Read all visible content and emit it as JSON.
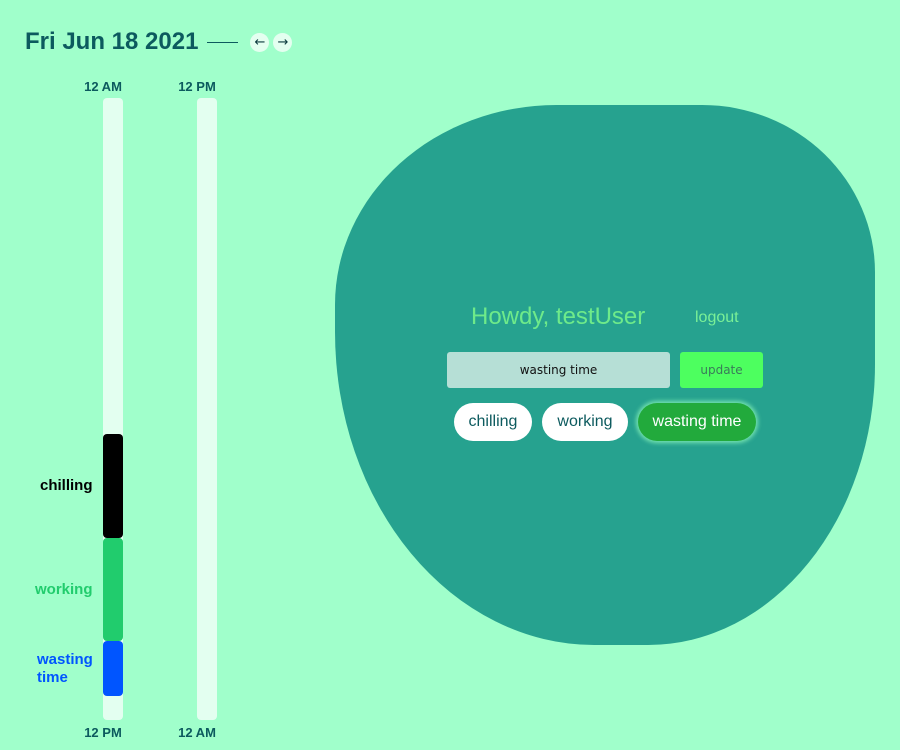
{
  "header": {
    "date": "Fri Jun 18 2021",
    "prev_label": "←",
    "next_label": "→"
  },
  "timeline": {
    "am_column": {
      "top_label": "12 AM",
      "bottom_label": "12 PM"
    },
    "pm_column": {
      "top_label": "12 PM",
      "bottom_label": "12 AM"
    },
    "segments": [
      {
        "name": "chilling",
        "label": "chilling",
        "color": "#000000",
        "label_color": "#000000"
      },
      {
        "name": "working",
        "label": "working",
        "color": "#21cc6d",
        "label_color": "#21cc6d"
      },
      {
        "name": "wasting-time",
        "label": "wasting time",
        "color": "#0055ff",
        "label_color": "#0055ff"
      }
    ]
  },
  "panel": {
    "greeting": "Howdy, testUser",
    "logout_label": "logout",
    "status_value": "wasting time",
    "update_label": "update",
    "options": [
      {
        "label": "chilling",
        "active": false
      },
      {
        "label": "working",
        "active": false
      },
      {
        "label": "wasting time",
        "active": true
      }
    ]
  },
  "colors": {
    "background": "#a0ffcb",
    "blob": "#26a28f",
    "accent": "#22aa3c"
  }
}
